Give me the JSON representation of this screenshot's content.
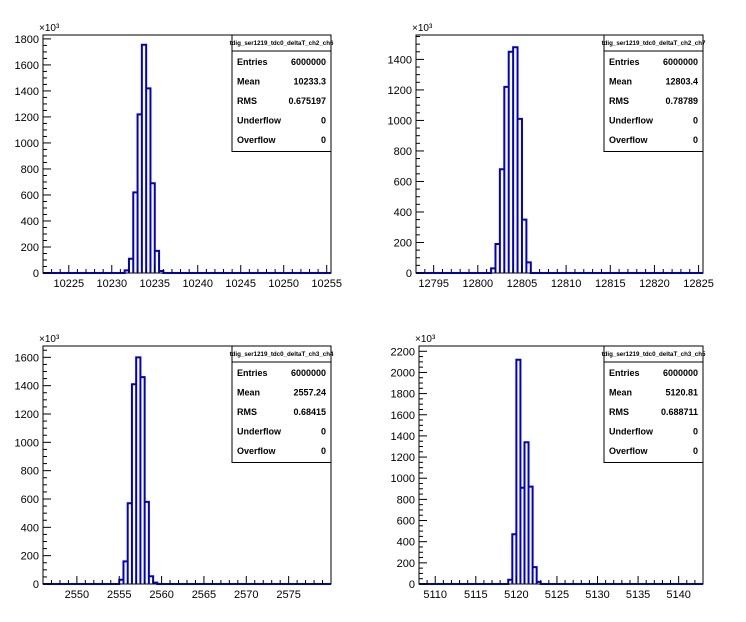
{
  "chart_data": [
    {
      "type": "histogram",
      "title": "tdig_ser1219_tdc0_deltaT_ch2_ch6",
      "multiplier": "×10³",
      "xlim": [
        10222,
        10255.5
      ],
      "ylim": [
        0,
        1830
      ],
      "xticks": [
        10225,
        10230,
        10235,
        10240,
        10245,
        10250,
        10255
      ],
      "yticks": [
        0,
        200,
        400,
        600,
        800,
        1000,
        1200,
        1400,
        1600,
        1800
      ],
      "bin_width": 0.5,
      "bins": [
        {
          "x": 10231.5,
          "y": 20
        },
        {
          "x": 10232.0,
          "y": 110
        },
        {
          "x": 10232.5,
          "y": 620
        },
        {
          "x": 10233.0,
          "y": 1220
        },
        {
          "x": 10233.5,
          "y": 1755
        },
        {
          "x": 10234.0,
          "y": 1420
        },
        {
          "x": 10234.5,
          "y": 690
        },
        {
          "x": 10235.0,
          "y": 170
        },
        {
          "x": 10235.5,
          "y": 15
        }
      ],
      "stats": [
        {
          "label": "Entries",
          "value": "6000000"
        },
        {
          "label": "Mean",
          "value": "10233.3"
        },
        {
          "label": "RMS",
          "value": "0.675197"
        },
        {
          "label": "Underflow",
          "value": "0"
        },
        {
          "label": "Overflow",
          "value": "0"
        }
      ]
    },
    {
      "type": "histogram",
      "title": "tdig_ser1219_tdc0_deltaT_ch2_ch7",
      "multiplier": "×10³",
      "xlim": [
        12793,
        12825.5
      ],
      "ylim": [
        0,
        1560
      ],
      "xticks": [
        12795,
        12800,
        12805,
        12810,
        12815,
        12820,
        12825
      ],
      "yticks": [
        0,
        200,
        400,
        600,
        800,
        1000,
        1200,
        1400
      ],
      "bin_width": 0.5,
      "bins": [
        {
          "x": 12801.5,
          "y": 30
        },
        {
          "x": 12802.0,
          "y": 190
        },
        {
          "x": 12802.5,
          "y": 680
        },
        {
          "x": 12803.0,
          "y": 1220
        },
        {
          "x": 12803.5,
          "y": 1450
        },
        {
          "x": 12804.0,
          "y": 1480
        },
        {
          "x": 12804.5,
          "y": 1010
        },
        {
          "x": 12805.0,
          "y": 350
        },
        {
          "x": 12805.5,
          "y": 70
        }
      ],
      "stats": [
        {
          "label": "Entries",
          "value": "6000000"
        },
        {
          "label": "Mean",
          "value": "12803.4"
        },
        {
          "label": "RMS",
          "value": "0.78789"
        },
        {
          "label": "Underflow",
          "value": "0"
        },
        {
          "label": "Overflow",
          "value": "0"
        }
      ]
    },
    {
      "type": "histogram",
      "title": "tdig_ser1219_tdc0_deltaT_ch3_ch4",
      "multiplier": "×10³",
      "xlim": [
        2546,
        2580
      ],
      "ylim": [
        0,
        1680
      ],
      "xticks": [
        2550,
        2555,
        2560,
        2565,
        2570,
        2575
      ],
      "yticks": [
        0,
        200,
        400,
        600,
        800,
        1000,
        1200,
        1400,
        1600
      ],
      "bin_width": 0.5,
      "bins": [
        {
          "x": 2555.0,
          "y": 30
        },
        {
          "x": 2555.5,
          "y": 160
        },
        {
          "x": 2556.0,
          "y": 570
        },
        {
          "x": 2556.5,
          "y": 1410
        },
        {
          "x": 2557.0,
          "y": 1600
        },
        {
          "x": 2557.5,
          "y": 1460
        },
        {
          "x": 2558.0,
          "y": 580
        },
        {
          "x": 2558.5,
          "y": 55
        },
        {
          "x": 2559.0,
          "y": 10
        }
      ],
      "stats": [
        {
          "label": "Entries",
          "value": "6000000"
        },
        {
          "label": "Mean",
          "value": "2557.24"
        },
        {
          "label": "RMS",
          "value": "0.68415"
        },
        {
          "label": "Underflow",
          "value": "0"
        },
        {
          "label": "Overflow",
          "value": "0"
        }
      ]
    },
    {
      "type": "histogram",
      "title": "tdig_ser1219_tdc0_deltaT_ch3_ch5",
      "multiplier": "×10³",
      "xlim": [
        5108,
        5143
      ],
      "ylim": [
        0,
        2250
      ],
      "xticks": [
        5110,
        5115,
        5120,
        5125,
        5130,
        5135,
        5140
      ],
      "yticks": [
        0,
        200,
        400,
        600,
        800,
        1000,
        1200,
        1400,
        1600,
        1800,
        2000,
        2200
      ],
      "bin_width": 0.5,
      "bins": [
        {
          "x": 5119.0,
          "y": 40
        },
        {
          "x": 5119.5,
          "y": 470
        },
        {
          "x": 5120.0,
          "y": 2120
        },
        {
          "x": 5120.5,
          "y": 910
        },
        {
          "x": 5121.0,
          "y": 1340
        },
        {
          "x": 5121.5,
          "y": 920
        },
        {
          "x": 5122.0,
          "y": 160
        },
        {
          "x": 5122.5,
          "y": 20
        }
      ],
      "stats": [
        {
          "label": "Entries",
          "value": "6000000"
        },
        {
          "label": "Mean",
          "value": "5120.81"
        },
        {
          "label": "RMS",
          "value": "0.688711"
        },
        {
          "label": "Underflow",
          "value": "0"
        },
        {
          "label": "Overflow",
          "value": "0"
        }
      ]
    }
  ],
  "style": {
    "line_color": "#0000cc",
    "frame_color": "#000000"
  }
}
